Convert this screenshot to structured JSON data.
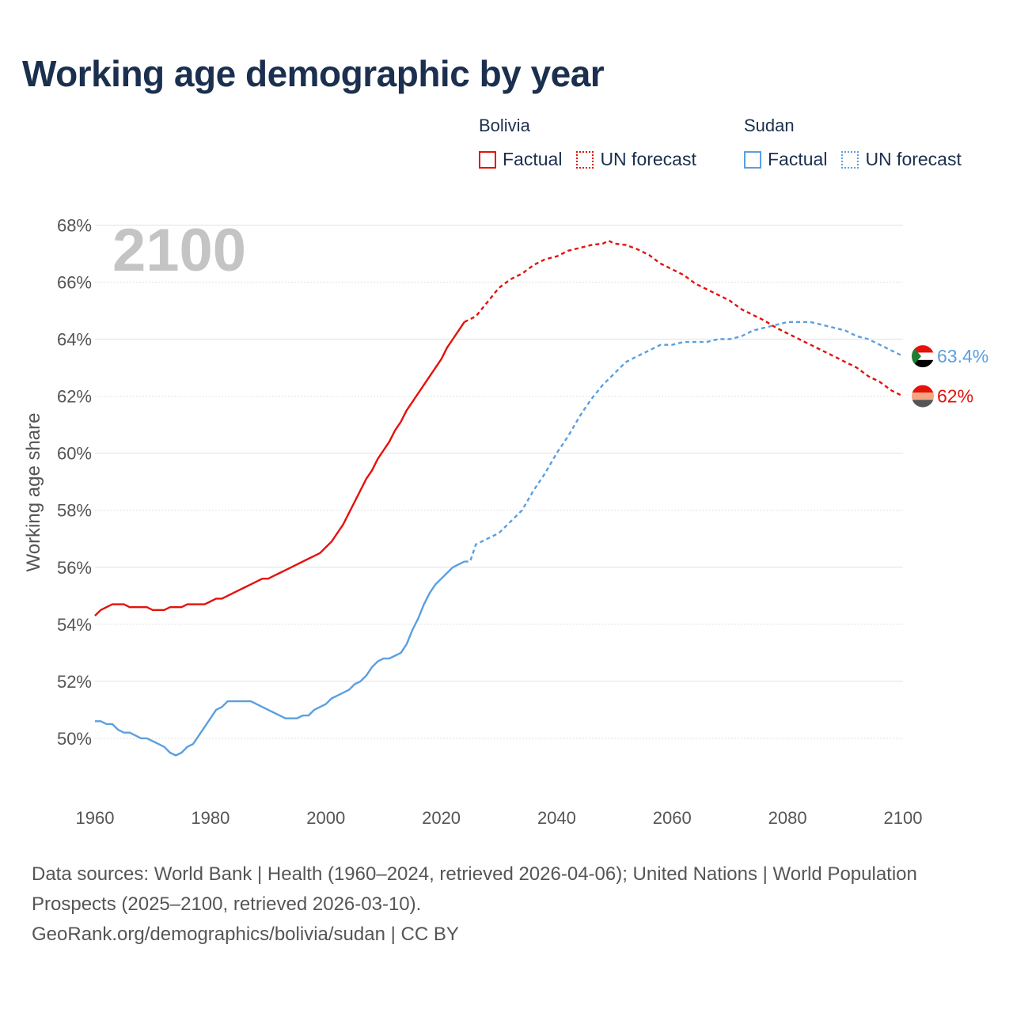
{
  "chart_data": {
    "type": "line",
    "title": "Working age demographic by year",
    "ylabel": "Working age share",
    "xlabel": "",
    "year_watermark": "2100",
    "xlim": [
      1960,
      2100
    ],
    "ylim": [
      48,
      68.4
    ],
    "x_ticks": [
      1960,
      1980,
      2000,
      2020,
      2040,
      2060,
      2080,
      2100
    ],
    "x_tick_labels": [
      "1960",
      "1980",
      "2000",
      "2020",
      "2040",
      "2060",
      "2080",
      "2100"
    ],
    "y_ticks": [
      50,
      52,
      54,
      56,
      58,
      60,
      62,
      64,
      66,
      68
    ],
    "y_tick_labels": [
      "50%",
      "52%",
      "54%",
      "56%",
      "58%",
      "60%",
      "62%",
      "64%",
      "66%",
      "68%"
    ],
    "grid": true,
    "legend_placement": "top-right",
    "series": [
      {
        "name": "Bolivia",
        "color": "#e3120b",
        "end_label": "62%",
        "flag_colors": [
          "#e3120b",
          "#f4a582",
          "#555555"
        ],
        "factual": {
          "label": "Factual",
          "x": [
            1960,
            1961,
            1962,
            1963,
            1964,
            1965,
            1966,
            1967,
            1968,
            1969,
            1970,
            1971,
            1972,
            1973,
            1974,
            1975,
            1976,
            1977,
            1978,
            1979,
            1980,
            1981,
            1982,
            1983,
            1984,
            1985,
            1986,
            1987,
            1988,
            1989,
            1990,
            1991,
            1992,
            1993,
            1994,
            1995,
            1996,
            1997,
            1998,
            1999,
            2000,
            2001,
            2002,
            2003,
            2004,
            2005,
            2006,
            2007,
            2008,
            2009,
            2010,
            2011,
            2012,
            2013,
            2014,
            2015,
            2016,
            2017,
            2018,
            2019,
            2020,
            2021,
            2022,
            2023,
            2024
          ],
          "y": [
            54.3,
            54.5,
            54.6,
            54.7,
            54.7,
            54.7,
            54.6,
            54.6,
            54.6,
            54.6,
            54.5,
            54.5,
            54.5,
            54.6,
            54.6,
            54.6,
            54.7,
            54.7,
            54.7,
            54.7,
            54.8,
            54.9,
            54.9,
            55.0,
            55.1,
            55.2,
            55.3,
            55.4,
            55.5,
            55.6,
            55.6,
            55.7,
            55.8,
            55.9,
            56.0,
            56.1,
            56.2,
            56.3,
            56.4,
            56.5,
            56.7,
            56.9,
            57.2,
            57.5,
            57.9,
            58.3,
            58.7,
            59.1,
            59.4,
            59.8,
            60.1,
            60.4,
            60.8,
            61.1,
            61.5,
            61.8,
            62.1,
            62.4,
            62.7,
            63.0,
            63.3,
            63.7,
            64.0,
            64.3,
            64.6
          ]
        },
        "forecast": {
          "label": "UN forecast",
          "x": [
            2024,
            2026,
            2028,
            2030,
            2032,
            2034,
            2036,
            2038,
            2040,
            2042,
            2044,
            2046,
            2048,
            2049,
            2050,
            2052,
            2054,
            2056,
            2058,
            2060,
            2062,
            2064,
            2066,
            2068,
            2070,
            2072,
            2074,
            2076,
            2078,
            2080,
            2082,
            2084,
            2086,
            2088,
            2090,
            2092,
            2094,
            2096,
            2098,
            2100
          ],
          "y": [
            64.6,
            64.8,
            65.3,
            65.8,
            66.1,
            66.3,
            66.6,
            66.8,
            66.9,
            67.1,
            67.2,
            67.3,
            67.35,
            67.45,
            67.35,
            67.3,
            67.15,
            66.95,
            66.65,
            66.45,
            66.25,
            65.95,
            65.75,
            65.55,
            65.35,
            65.05,
            64.85,
            64.65,
            64.4,
            64.2,
            64.0,
            63.8,
            63.6,
            63.4,
            63.2,
            63.0,
            62.7,
            62.5,
            62.2,
            62.0
          ]
        }
      },
      {
        "name": "Sudan",
        "color": "#5b9fe0",
        "end_label": "63.4%",
        "flag_colors": [
          "#e3120b",
          "#ffffff",
          "#000000",
          "#1e7d32"
        ],
        "factual": {
          "label": "Factual",
          "x": [
            1960,
            1961,
            1962,
            1963,
            1964,
            1965,
            1966,
            1967,
            1968,
            1969,
            1970,
            1971,
            1972,
            1973,
            1974,
            1975,
            1976,
            1977,
            1978,
            1979,
            1980,
            1981,
            1982,
            1983,
            1984,
            1985,
            1986,
            1987,
            1988,
            1989,
            1990,
            1991,
            1992,
            1993,
            1994,
            1995,
            1996,
            1997,
            1998,
            1999,
            2000,
            2001,
            2002,
            2003,
            2004,
            2005,
            2006,
            2007,
            2008,
            2009,
            2010,
            2011,
            2012,
            2013,
            2014,
            2015,
            2016,
            2017,
            2018,
            2019,
            2020,
            2021,
            2022,
            2023,
            2024
          ],
          "y": [
            50.6,
            50.6,
            50.5,
            50.5,
            50.3,
            50.2,
            50.2,
            50.1,
            50.0,
            50.0,
            49.9,
            49.8,
            49.7,
            49.5,
            49.4,
            49.5,
            49.7,
            49.8,
            50.1,
            50.4,
            50.7,
            51.0,
            51.1,
            51.3,
            51.3,
            51.3,
            51.3,
            51.3,
            51.2,
            51.1,
            51.0,
            50.9,
            50.8,
            50.7,
            50.7,
            50.7,
            50.8,
            50.8,
            51.0,
            51.1,
            51.2,
            51.4,
            51.5,
            51.6,
            51.7,
            51.9,
            52.0,
            52.2,
            52.5,
            52.7,
            52.8,
            52.8,
            52.9,
            53.0,
            53.3,
            53.8,
            54.2,
            54.7,
            55.1,
            55.4,
            55.6,
            55.8,
            56.0,
            56.1,
            56.2
          ]
        },
        "forecast": {
          "label": "UN forecast",
          "x": [
            2024,
            2025,
            2026,
            2028,
            2030,
            2032,
            2034,
            2036,
            2038,
            2040,
            2042,
            2044,
            2046,
            2048,
            2050,
            2052,
            2054,
            2056,
            2058,
            2060,
            2062,
            2064,
            2066,
            2068,
            2070,
            2072,
            2074,
            2076,
            2078,
            2080,
            2082,
            2084,
            2086,
            2088,
            2090,
            2092,
            2094,
            2096,
            2098,
            2100
          ],
          "y": [
            56.2,
            56.2,
            56.8,
            57.0,
            57.2,
            57.6,
            58.0,
            58.7,
            59.3,
            60.0,
            60.6,
            61.3,
            61.9,
            62.4,
            62.8,
            63.2,
            63.4,
            63.6,
            63.8,
            63.8,
            63.9,
            63.9,
            63.9,
            64.0,
            64.0,
            64.1,
            64.3,
            64.4,
            64.5,
            64.6,
            64.6,
            64.6,
            64.5,
            64.4,
            64.3,
            64.1,
            64.0,
            63.8,
            63.6,
            63.4
          ]
        }
      }
    ]
  },
  "legend": {
    "groups": [
      {
        "country": "Bolivia",
        "factual_label": "Factual",
        "forecast_label": "UN forecast",
        "color": "#e3120b"
      },
      {
        "country": "Sudan",
        "factual_label": "Factual",
        "forecast_label": "UN forecast",
        "color": "#5b9fe0"
      }
    ]
  },
  "footer": {
    "line1": "Data sources: World Bank | Health (1960–2024, retrieved 2026-04-06); United Nations | World Population Prospects (2025–2100, retrieved 2026-03-10).",
    "line2": "GeoRank.org/demographics/bolivia/sudan | CC BY"
  }
}
